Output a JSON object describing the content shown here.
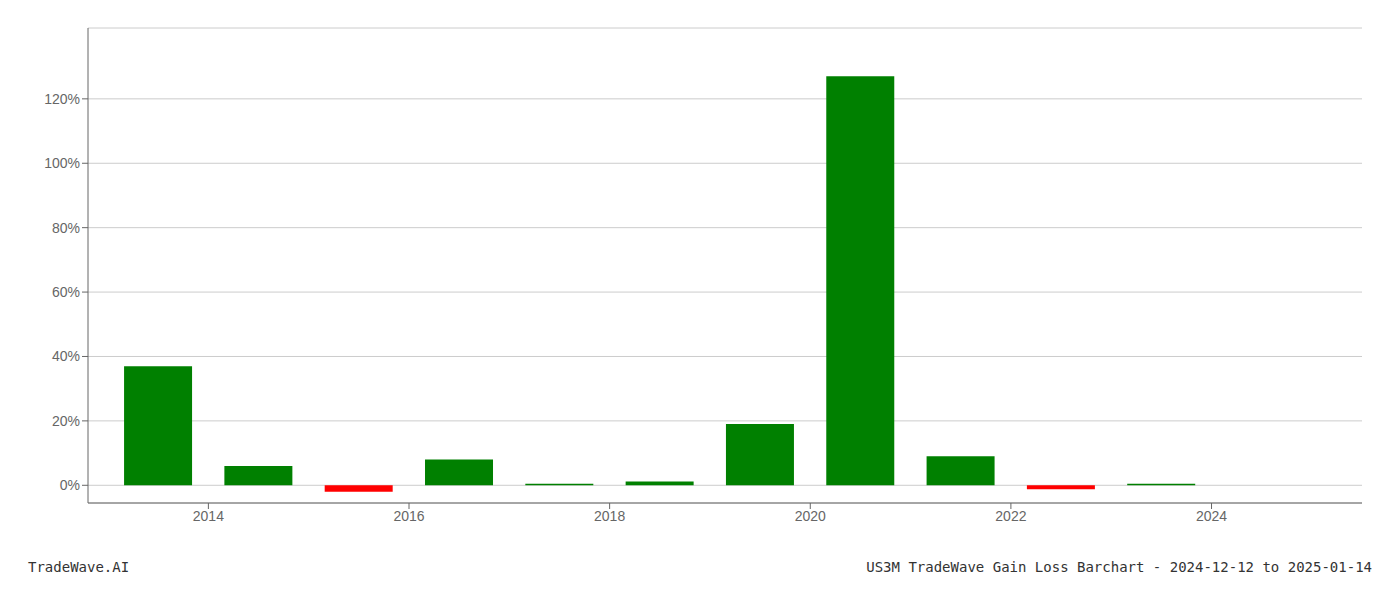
{
  "chart_data": {
    "type": "bar",
    "title": "US3M TradeWave Gain Loss Barchart - 2024-12-12 to 2025-01-14",
    "annotations": [
      "TradeWave.AI"
    ],
    "x": [
      2013.5,
      2014.5,
      2015.5,
      2016.5,
      2017.5,
      2018.5,
      2019.5,
      2020.5,
      2021.5,
      2022.5,
      2023.5,
      2024.5
    ],
    "values": [
      0.37,
      0.06,
      -0.02,
      0.08,
      0.005,
      0.012,
      0.19,
      1.27,
      0.09,
      -0.012,
      0.005,
      0.0
    ],
    "colors": [
      "#008000",
      "#008000",
      "#ff0000",
      "#008000",
      "#008000",
      "#008000",
      "#008000",
      "#008000",
      "#008000",
      "#ff0000",
      "#008000",
      "#008000"
    ],
    "xlim": [
      2012.8,
      2025.5
    ],
    "xticks": [
      2014,
      2016,
      2018,
      2020,
      2022,
      2024
    ],
    "ylim": [
      -0.055,
      1.42
    ],
    "yticks": [
      {
        "value": 0.0,
        "label": "0%"
      },
      {
        "value": 0.2,
        "label": "20%"
      },
      {
        "value": 0.4,
        "label": "40%"
      },
      {
        "value": 0.6,
        "label": "60%"
      },
      {
        "value": 0.8,
        "label": "80%"
      },
      {
        "value": 1.0,
        "label": "100%"
      },
      {
        "value": 1.2,
        "label": "120%"
      }
    ],
    "grid": true
  }
}
